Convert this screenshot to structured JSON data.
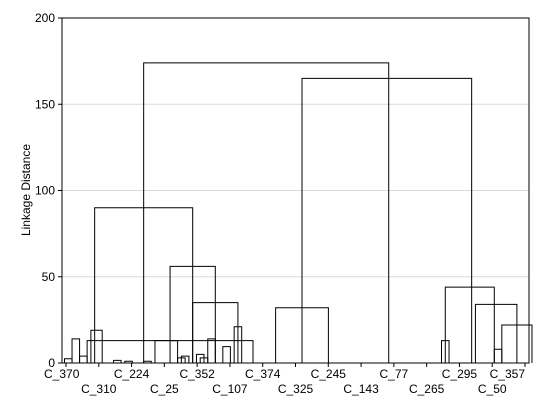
{
  "chart_data": {
    "type": "dendrogram",
    "title": "",
    "xlabel": "",
    "ylabel": "Linkage Distance",
    "ylim": [
      0,
      200
    ],
    "yticks": [
      0,
      50,
      100,
      150,
      200
    ],
    "grid": "horizontal",
    "leaf_labels": [
      {
        "label": "C_370",
        "row": "top"
      },
      {
        "label": "C_310",
        "row": "bottom"
      },
      {
        "label": "C_224",
        "row": "top"
      },
      {
        "label": "C_25",
        "row": "bottom"
      },
      {
        "label": "C_352",
        "row": "top"
      },
      {
        "label": "C_107",
        "row": "bottom"
      },
      {
        "label": "C_374",
        "row": "top"
      },
      {
        "label": "C_325",
        "row": "bottom"
      },
      {
        "label": "C_245",
        "row": "top"
      },
      {
        "label": "C_143",
        "row": "bottom"
      },
      {
        "label": "C_77",
        "row": "top"
      },
      {
        "label": "C_265",
        "row": "bottom"
      },
      {
        "label": "C_295",
        "row": "top"
      },
      {
        "label": "C_50",
        "row": "bottom"
      },
      {
        "label": "C_357",
        "row": "top"
      }
    ],
    "merges": [
      {
        "left": 0.0,
        "right": 1.0,
        "height": 2.5
      },
      {
        "left": 2.0,
        "right": 3.0,
        "height": 4
      },
      {
        "left": 6.5,
        "right": 7.5,
        "height": 1.5
      },
      {
        "left": 8.0,
        "right": 9.0,
        "height": 1
      },
      {
        "left": 10.5,
        "right": 11.5,
        "height": 1
      },
      {
        "left": 15.5,
        "right": 16.5,
        "height": 4
      },
      {
        "left": 15.0,
        "right": 16.0,
        "height": 3
      },
      {
        "left": 17.5,
        "right": 18.5,
        "height": 5
      },
      {
        "left": 18.0,
        "right": 19.0,
        "height": 3
      },
      {
        "left": 21.0,
        "right": 22.0,
        "height": 9.5
      },
      {
        "left": 19.0,
        "right": 20.0,
        "height": 14
      },
      {
        "left": 22.5,
        "right": 23.5,
        "height": 21
      },
      {
        "left": 17.0,
        "right": 23.0,
        "height": 35
      },
      {
        "left": 12.0,
        "right": 25.0,
        "height": 13
      },
      {
        "left": 1.0,
        "right": 2.0,
        "height": 14
      },
      {
        "left": 3.5,
        "right": 5.0,
        "height": 19
      },
      {
        "left": 3.0,
        "right": 15.0,
        "height": 13
      },
      {
        "left": 14.0,
        "right": 20.0,
        "height": 56
      },
      {
        "left": 4.0,
        "right": 17.0,
        "height": 90
      },
      {
        "left": 28.0,
        "right": 35.0,
        "height": 32
      },
      {
        "left": 50.0,
        "right": 51.0,
        "height": 13
      },
      {
        "left": 57.0,
        "right": 58.0,
        "height": 8
      },
      {
        "left": 58.0,
        "right": 62.0,
        "height": 22
      },
      {
        "left": 54.5,
        "right": 60.0,
        "height": 34
      },
      {
        "left": 50.5,
        "right": 57.0,
        "height": 44
      },
      {
        "left": 31.5,
        "right": 54.0,
        "height": 165
      },
      {
        "left": 10.5,
        "right": 43.0,
        "height": 174
      }
    ],
    "leaf_axis_span": [
      0,
      62
    ]
  }
}
